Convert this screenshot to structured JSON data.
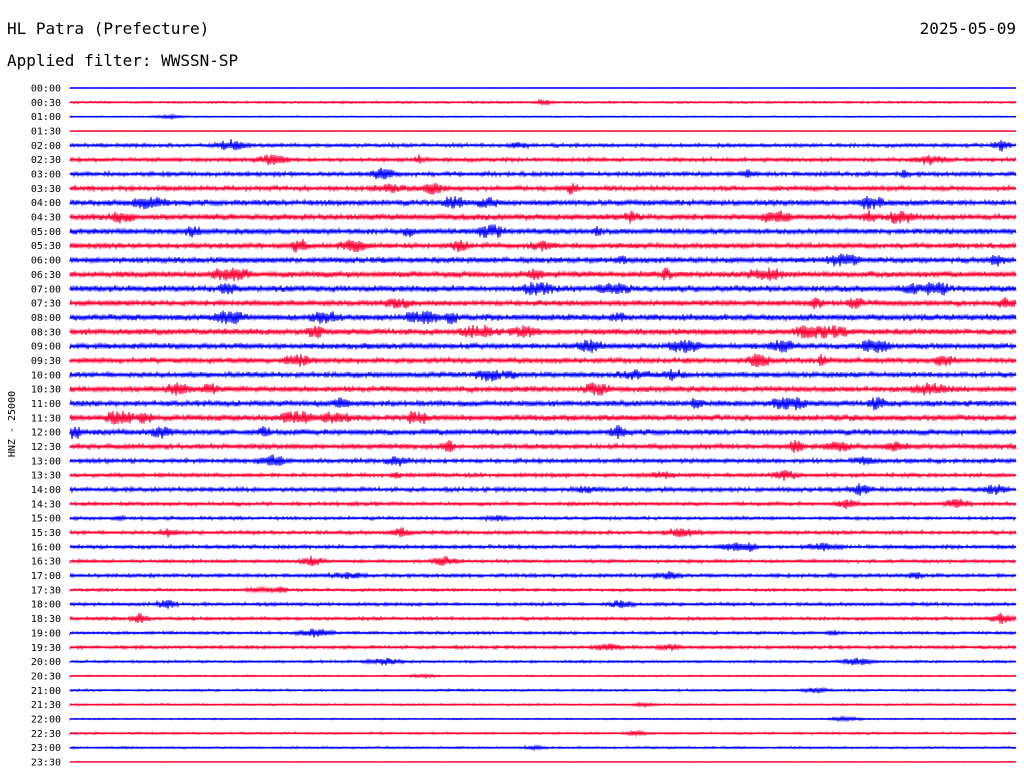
{
  "header": {
    "title": "HL Patra (Prefecture)",
    "date": "2025-05-09",
    "filter": "Applied filter: WWSSN-SP"
  },
  "chart_data": {
    "type": "line",
    "title": "HL Patra (Prefecture)",
    "subtitle": "Applied filter: WWSSN-SP",
    "ylabel": "HNZ - 25000",
    "xlabel": "",
    "colors": {
      "even": "#0000ff",
      "odd": "#ff0033"
    },
    "rows": [
      {
        "label": "00:00",
        "amp": 0.3
      },
      {
        "label": "00:30",
        "amp": 1.2
      },
      {
        "label": "01:00",
        "amp": 0.8
      },
      {
        "label": "01:30",
        "amp": 0.5
      },
      {
        "label": "02:00",
        "amp": 2.0
      },
      {
        "label": "02:30",
        "amp": 2.2
      },
      {
        "label": "03:00",
        "amp": 2.4
      },
      {
        "label": "03:30",
        "amp": 2.6
      },
      {
        "label": "04:00",
        "amp": 3.2
      },
      {
        "label": "04:30",
        "amp": 3.4
      },
      {
        "label": "05:00",
        "amp": 3.2
      },
      {
        "label": "05:30",
        "amp": 3.0
      },
      {
        "label": "06:00",
        "amp": 3.2
      },
      {
        "label": "06:30",
        "amp": 3.4
      },
      {
        "label": "07:00",
        "amp": 3.6
      },
      {
        "label": "07:30",
        "amp": 3.0
      },
      {
        "label": "08:00",
        "amp": 3.6
      },
      {
        "label": "08:30",
        "amp": 3.4
      },
      {
        "label": "09:00",
        "amp": 3.2
      },
      {
        "label": "09:30",
        "amp": 3.0
      },
      {
        "label": "10:00",
        "amp": 3.0
      },
      {
        "label": "10:30",
        "amp": 3.2
      },
      {
        "label": "11:00",
        "amp": 3.2
      },
      {
        "label": "11:30",
        "amp": 3.4
      },
      {
        "label": "12:00",
        "amp": 3.2
      },
      {
        "label": "12:30",
        "amp": 2.8
      },
      {
        "label": "13:00",
        "amp": 2.4
      },
      {
        "label": "13:30",
        "amp": 2.2
      },
      {
        "label": "14:00",
        "amp": 2.4
      },
      {
        "label": "14:30",
        "amp": 2.0
      },
      {
        "label": "15:00",
        "amp": 1.8
      },
      {
        "label": "15:30",
        "amp": 2.0
      },
      {
        "label": "16:00",
        "amp": 2.0
      },
      {
        "label": "16:30",
        "amp": 1.8
      },
      {
        "label": "17:00",
        "amp": 2.0
      },
      {
        "label": "17:30",
        "amp": 1.6
      },
      {
        "label": "18:00",
        "amp": 1.8
      },
      {
        "label": "18:30",
        "amp": 1.8
      },
      {
        "label": "19:00",
        "amp": 1.6
      },
      {
        "label": "19:30",
        "amp": 1.8
      },
      {
        "label": "20:00",
        "amp": 1.4
      },
      {
        "label": "20:30",
        "amp": 0.9
      },
      {
        "label": "21:00",
        "amp": 1.2
      },
      {
        "label": "21:30",
        "amp": 1.0
      },
      {
        "label": "22:00",
        "amp": 0.8
      },
      {
        "label": "22:30",
        "amp": 1.2
      },
      {
        "label": "23:00",
        "amp": 1.2
      },
      {
        "label": "23:30",
        "amp": 0.4
      }
    ]
  }
}
